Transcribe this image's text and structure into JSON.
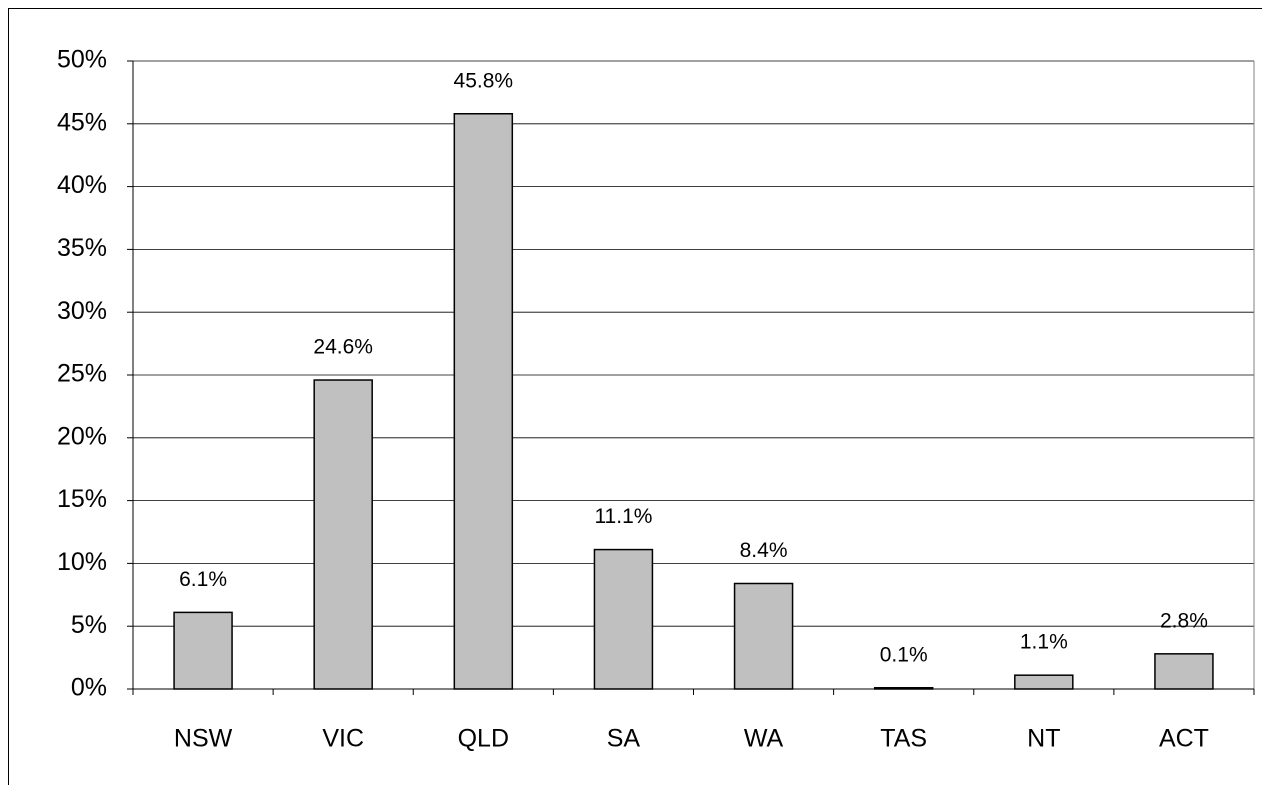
{
  "chart_data": {
    "type": "bar",
    "categories": [
      "NSW",
      "VIC",
      "QLD",
      "SA",
      "WA",
      "TAS",
      "NT",
      "ACT"
    ],
    "values": [
      6.1,
      24.6,
      45.8,
      11.1,
      8.4,
      0.1,
      1.1,
      2.8
    ],
    "value_labels": [
      "6.1%",
      "24.6%",
      "45.8%",
      "11.1%",
      "8.4%",
      "0.1%",
      "1.1%",
      "2.8%"
    ],
    "color": "#c0c0c0",
    "ylim": [
      0,
      50
    ],
    "yticks": [
      {
        "value": 0,
        "label": "0%"
      },
      {
        "value": 5,
        "label": "5%"
      },
      {
        "value": 10,
        "label": "10%"
      },
      {
        "value": 15,
        "label": "15%"
      },
      {
        "value": 20,
        "label": "20%"
      },
      {
        "value": 25,
        "label": "25%"
      },
      {
        "value": 30,
        "label": "30%"
      },
      {
        "value": 35,
        "label": "35%"
      },
      {
        "value": 40,
        "label": "40%"
      },
      {
        "value": 45,
        "label": "45%"
      },
      {
        "value": 50,
        "label": "50%"
      }
    ],
    "grid": true
  }
}
